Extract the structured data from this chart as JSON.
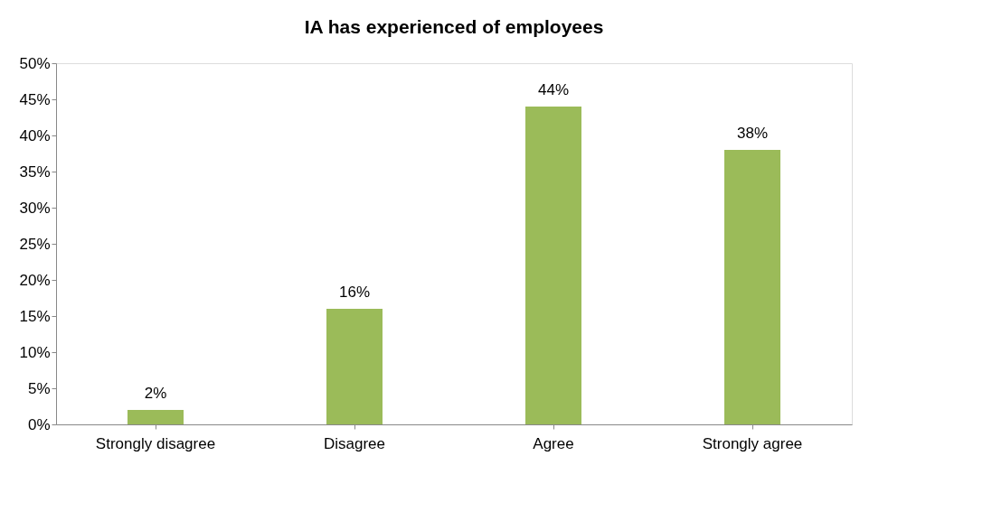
{
  "chart_data": {
    "type": "bar",
    "title": "IA has experienced of employees",
    "categories": [
      "Strongly disagree",
      "Disagree",
      "Agree",
      "Strongly agree"
    ],
    "values": [
      2,
      16,
      44,
      38
    ],
    "value_labels": [
      "2%",
      "16%",
      "44%",
      "38%"
    ],
    "color": "#9bbb59",
    "ylim": [
      0,
      50
    ],
    "yticks": [
      {
        "value": 0,
        "label": "0%"
      },
      {
        "value": 5,
        "label": "5%"
      },
      {
        "value": 10,
        "label": "10%"
      },
      {
        "value": 15,
        "label": "15%"
      },
      {
        "value": 20,
        "label": "20%"
      },
      {
        "value": 25,
        "label": "25%"
      },
      {
        "value": 30,
        "label": "30%"
      },
      {
        "value": 35,
        "label": "35%"
      },
      {
        "value": 40,
        "label": "40%"
      },
      {
        "value": 45,
        "label": "45%"
      },
      {
        "value": 50,
        "label": "50%"
      }
    ],
    "grid": false
  }
}
